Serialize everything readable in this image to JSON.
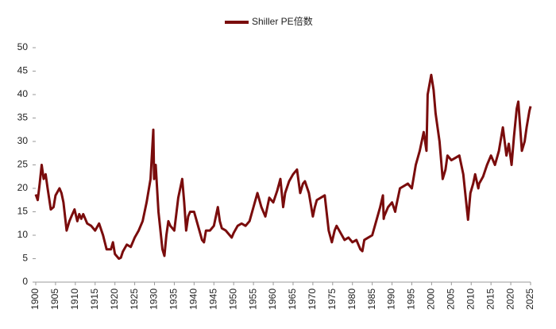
{
  "chart_data": {
    "type": "line",
    "x": [
      1900,
      1900.5,
      1901,
      1901.5,
      1902,
      1902.5,
      1903,
      1903.8,
      1904.5,
      1905,
      1906,
      1906.5,
      1907,
      1907.8,
      1908.5,
      1909,
      1909.8,
      1910.5,
      1911,
      1911.5,
      1912,
      1913,
      1914,
      1915,
      1916,
      1917,
      1917.9,
      1919,
      1919.5,
      1920,
      1921,
      1921.5,
      1922,
      1923,
      1924,
      1925,
      1926,
      1927,
      1928,
      1929,
      1929.7,
      1929.9,
      1930.3,
      1931,
      1932,
      1932.5,
      1933,
      1933.5,
      1934,
      1935,
      1936,
      1937,
      1937.5,
      1938,
      1938.5,
      1939,
      1940,
      1941,
      1942,
      1942.5,
      1943,
      1944,
      1945,
      1946,
      1946.5,
      1947,
      1948,
      1949,
      1949.5,
      1950,
      1951,
      1952,
      1953,
      1954,
      1955,
      1956,
      1957,
      1958,
      1959,
      1960,
      1961,
      1961.8,
      1962.5,
      1963,
      1964,
      1965,
      1966,
      1966.8,
      1967.5,
      1968,
      1969,
      1970,
      1970.5,
      1971,
      1972,
      1973,
      1974,
      1974.8,
      1975.5,
      1976,
      1977,
      1978,
      1979,
      1980,
      1981,
      1982,
      1982.5,
      1983,
      1984,
      1985,
      1986,
      1987,
      1987.7,
      1987.9,
      1988,
      1989,
      1990,
      1990.8,
      1991,
      1992,
      1993,
      1994,
      1995,
      1996,
      1997,
      1998,
      1998.7,
      1999,
      1999.9,
      2000.5,
      2001,
      2002,
      2002.8,
      2003.5,
      2004,
      2005,
      2006,
      2007,
      2008,
      2009.2,
      2009.8,
      2010.5,
      2011,
      2011.8,
      2012,
      2013,
      2014,
      2015,
      2016,
      2017,
      2018,
      2018.9,
      2019.5,
      2020.2,
      2020.8,
      2021.5,
      2021.9,
      2022.8,
      2023.5,
      2024,
      2024.7,
      2025
    ],
    "series": [
      {
        "name": "Shiller PE倍数",
        "color": "#7a0c0c",
        "values": [
          18.7,
          17.5,
          21,
          25,
          22,
          23,
          20,
          15.5,
          16,
          18.5,
          20,
          19,
          17,
          11,
          13,
          14,
          15.5,
          13,
          14.5,
          13.5,
          14.5,
          12.5,
          12,
          11,
          12.5,
          10,
          7,
          7,
          8.5,
          6,
          5,
          5.2,
          6.5,
          8,
          7.5,
          9.5,
          11,
          13,
          17,
          22,
          32.5,
          22,
          25,
          15,
          7,
          5.6,
          10,
          13,
          12,
          11,
          18,
          22,
          17,
          11,
          14,
          15,
          15,
          12,
          9,
          8.5,
          11,
          11,
          12,
          16,
          13,
          11.5,
          11,
          10,
          9.5,
          10.5,
          12,
          12.5,
          12,
          13,
          16,
          19,
          16,
          14,
          18,
          17,
          19.5,
          22,
          16,
          19,
          21.5,
          23,
          24,
          19,
          21,
          21.5,
          19,
          14,
          16,
          17.5,
          18,
          18.5,
          11,
          8.5,
          11,
          12,
          10.5,
          9,
          9.5,
          8.5,
          9,
          7,
          6.6,
          9,
          9.5,
          10,
          13,
          16,
          18.5,
          13.5,
          14,
          16,
          17,
          15,
          16,
          20,
          20.5,
          21,
          20,
          25,
          28,
          32,
          28,
          40,
          44.2,
          41,
          36,
          30,
          22,
          24,
          27,
          26,
          26.5,
          27,
          23,
          13.3,
          19,
          21,
          23,
          20,
          21,
          22.5,
          25,
          27,
          25,
          28,
          33,
          27,
          29.5,
          25,
          31,
          37,
          38.5,
          28,
          30,
          33,
          36.5,
          37.5
        ]
      }
    ],
    "xlim": [
      1900,
      2025
    ],
    "xticks": [
      1900,
      1905,
      1910,
      1915,
      1920,
      1925,
      1930,
      1935,
      1940,
      1945,
      1950,
      1955,
      1960,
      1965,
      1970,
      1975,
      1980,
      1985,
      1990,
      1995,
      2000,
      2005,
      2010,
      2015,
      2020,
      2025
    ],
    "ylim": [
      0,
      50
    ],
    "yticks": [
      0,
      5,
      10,
      15,
      20,
      25,
      30,
      35,
      40,
      45,
      50
    ],
    "legend": "top"
  }
}
